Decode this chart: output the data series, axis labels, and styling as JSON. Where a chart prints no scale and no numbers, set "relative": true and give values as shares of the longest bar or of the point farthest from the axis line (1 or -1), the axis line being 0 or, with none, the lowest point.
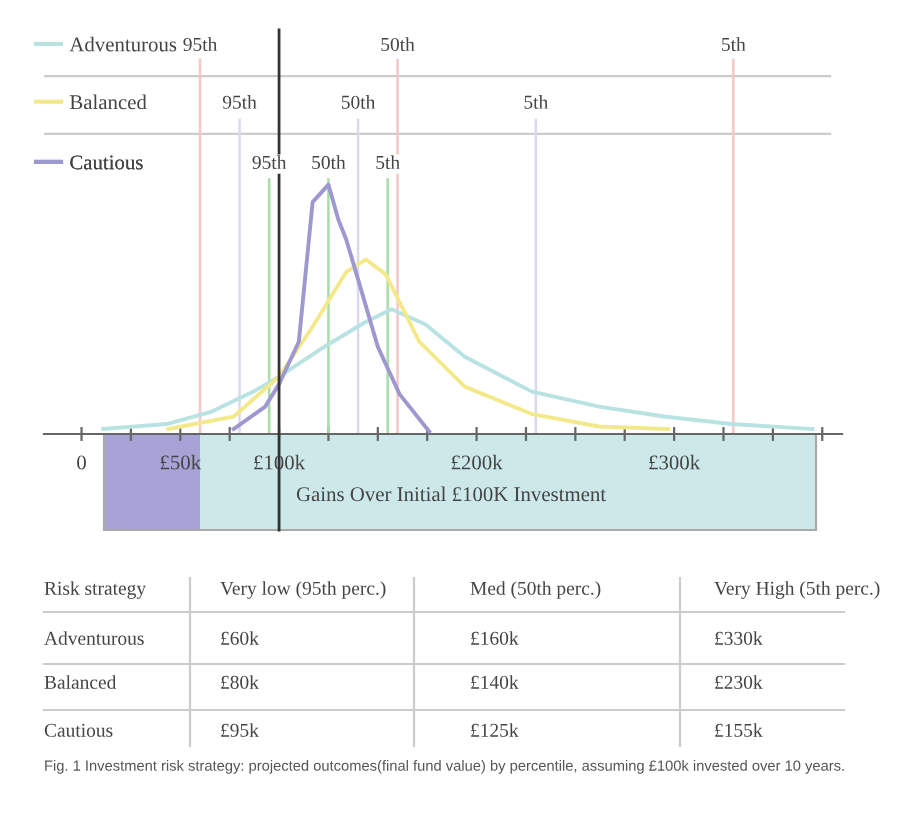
{
  "chart_data": {
    "type": "line",
    "relative": true,
    "legend": "top left",
    "xlabel": "Gains Over Initial £100K Investment",
    "xlim": [
      -19,
      385
    ],
    "xticks": [
      {
        "value": 0,
        "label": "0"
      },
      {
        "value": 25,
        "label": null
      },
      {
        "value": 50,
        "label": "£50k"
      },
      {
        "value": 75,
        "label": null
      },
      {
        "value": 100,
        "label": "£100k"
      },
      {
        "value": 125,
        "label": null
      },
      {
        "value": 150,
        "label": null
      },
      {
        "value": 175,
        "label": null
      },
      {
        "value": 200,
        "label": "£200k"
      },
      {
        "value": 225,
        "label": null
      },
      {
        "value": 250,
        "label": null
      },
      {
        "value": 275,
        "label": null
      },
      {
        "value": 300,
        "label": "£300k"
      },
      {
        "value": 325,
        "label": null
      },
      {
        "value": 350,
        "label": null
      },
      {
        "value": 375,
        "label": null
      }
    ],
    "series": [
      {
        "name": "Adventurous",
        "color": "#b9e2e2",
        "x": [
          11,
          43,
          66,
          87,
          100,
          123,
          144,
          157,
          174,
          194,
          228,
          262,
          295,
          329,
          370
        ],
        "values": [
          0.02,
          0.04,
          0.09,
          0.17,
          0.23,
          0.35,
          0.45,
          0.5,
          0.44,
          0.31,
          0.17,
          0.11,
          0.07,
          0.04,
          0.02
        ]
      },
      {
        "name": "Balanced",
        "color": "#f3e98a",
        "x": [
          44,
          77,
          100,
          117,
          134,
          144,
          154,
          171,
          194,
          228,
          262,
          297
        ],
        "values": [
          0.02,
          0.07,
          0.23,
          0.43,
          0.65,
          0.7,
          0.64,
          0.37,
          0.19,
          0.08,
          0.03,
          0.02
        ]
      },
      {
        "name": "Cautious",
        "color": "#9d98d0",
        "x": [
          77,
          93,
          100,
          110,
          117,
          125,
          130,
          134,
          140,
          150,
          161,
          176
        ],
        "values": [
          0.02,
          0.11,
          0.2,
          0.37,
          0.93,
          1.0,
          0.86,
          0.78,
          0.62,
          0.35,
          0.16,
          0.01
        ]
      }
    ],
    "ref_lines": [
      {
        "axis": "x",
        "value": 60,
        "label": "95th",
        "color": "#f4c6c6"
      },
      {
        "axis": "x",
        "value": 160,
        "label": "50th",
        "color": "#f4c6c6"
      },
      {
        "axis": "x",
        "value": 330,
        "label": "5th",
        "color": "#f4c6c6"
      },
      {
        "axis": "x",
        "value": 80,
        "label": "95th",
        "color": "#d9d9ef"
      },
      {
        "axis": "x",
        "value": 140,
        "label": "50th",
        "color": "#d9d9ef"
      },
      {
        "axis": "x",
        "value": 230,
        "label": "5th",
        "color": "#d9d9ef"
      },
      {
        "axis": "x",
        "value": 95,
        "label": "95th",
        "color": "#a8dca8"
      },
      {
        "axis": "x",
        "value": 125,
        "label": "50th",
        "color": "#a8dca8"
      },
      {
        "axis": "x",
        "value": 155,
        "label": "5th",
        "color": "#a8dca8"
      },
      {
        "axis": "x",
        "value": 100,
        "label": null,
        "color": "#333333"
      }
    ],
    "annotations": [
      "Risk strategy",
      "Very low (95th perc.)",
      "Med (50th perc.)",
      "Very High (5th perc.)",
      "Adventurous",
      "£60k",
      "£160k",
      "£330k",
      "Balanced",
      "£80k",
      "£140k",
      "£230k",
      "Cautious",
      "£95k",
      "£125k",
      "£155k",
      "Fig. 1 Investment risk strategy: projected outcomes(final fund value) by percentile, assuming £100k invested over 10 years."
    ]
  }
}
